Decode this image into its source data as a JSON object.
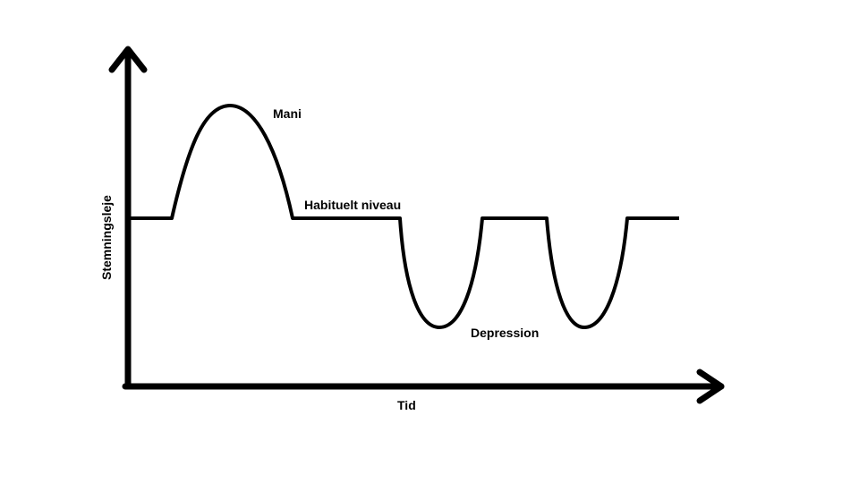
{
  "labels": {
    "y_axis": "Stemningsleje",
    "x_axis": "Tid",
    "mania": "Mani",
    "baseline": "Habituelt niveau",
    "depression": "Depression"
  },
  "colors": {
    "line": "#000000",
    "background": "#ffffff"
  }
}
